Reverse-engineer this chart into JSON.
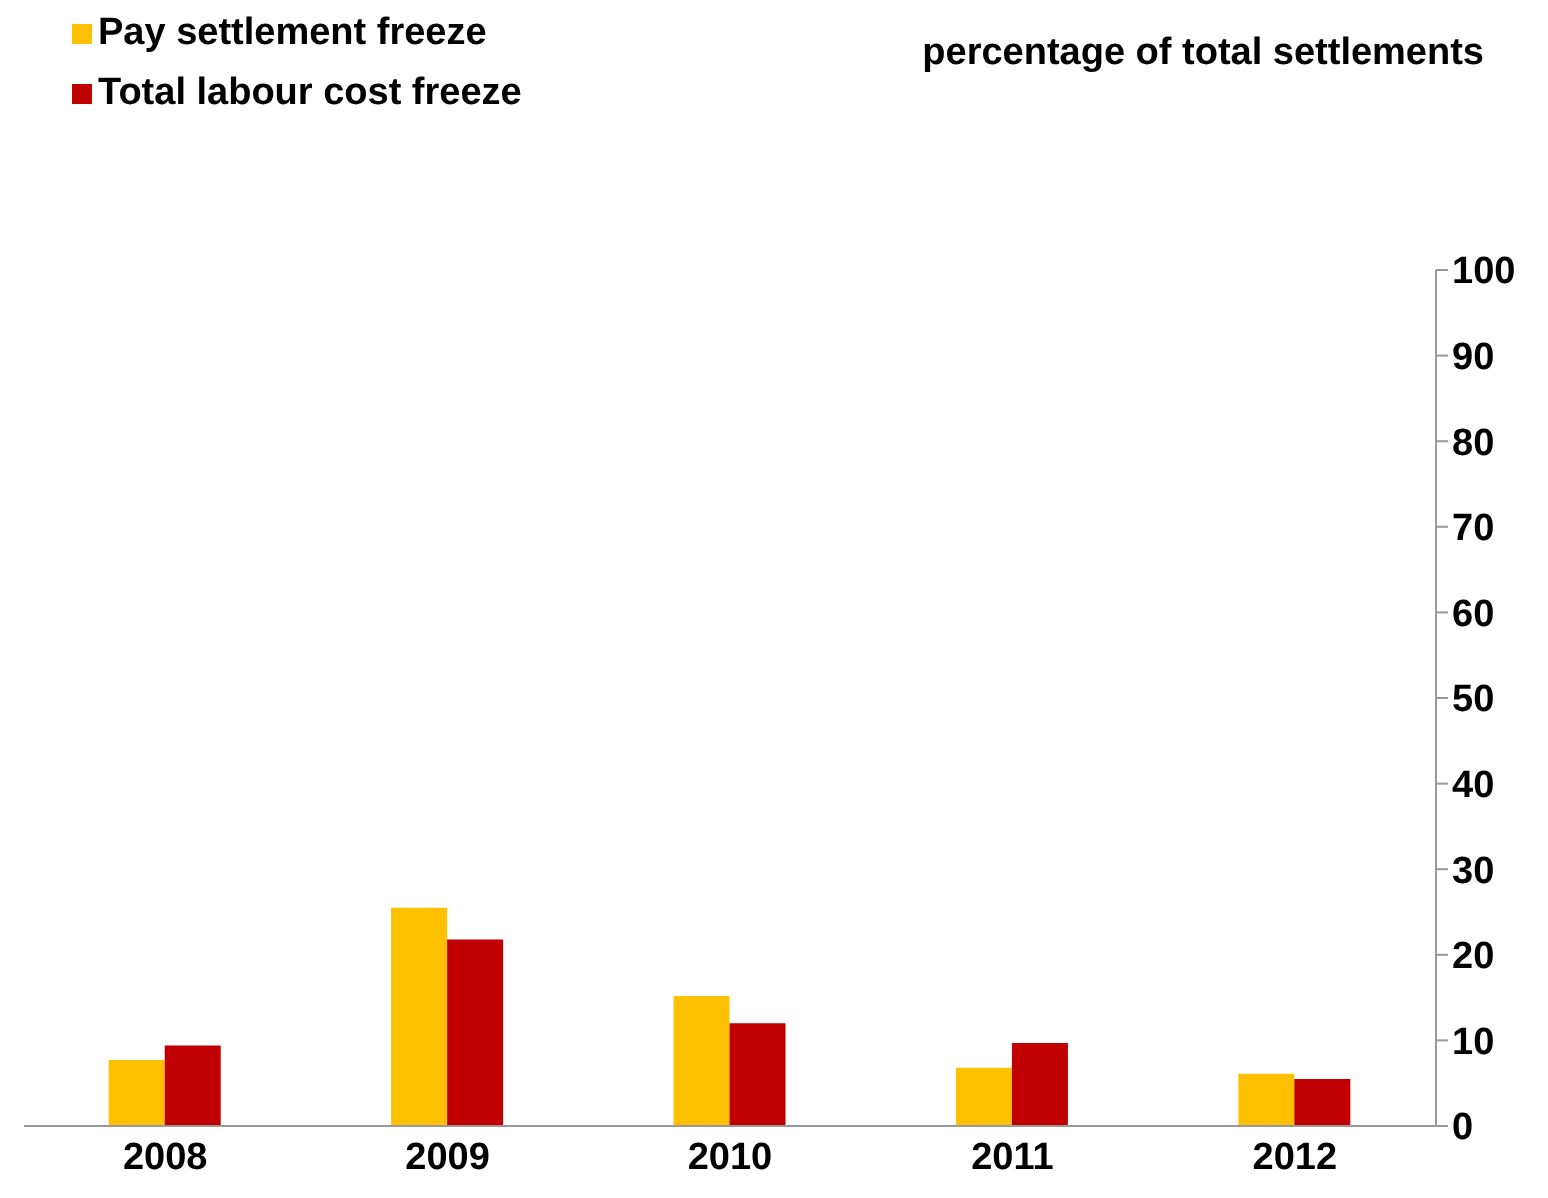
{
  "chart_data": {
    "type": "bar",
    "ylabel": "percentage of total settlements",
    "categories": [
      "2008",
      "2009",
      "2010",
      "2011",
      "2012"
    ],
    "series": [
      {
        "name": "Pay settlement freeze",
        "color": "#ffc000",
        "values": [
          7.7,
          25.5,
          15.2,
          6.8,
          6.1
        ]
      },
      {
        "name": "Total labour cost freeze",
        "color": "#c00000",
        "values": [
          9.4,
          21.8,
          12.0,
          9.7,
          5.5
        ]
      }
    ],
    "ylim": [
      0,
      100
    ],
    "yticks": [
      0,
      10,
      20,
      30,
      40,
      50,
      60,
      70,
      80,
      90,
      100
    ],
    "grid": false,
    "legend": "top left"
  }
}
